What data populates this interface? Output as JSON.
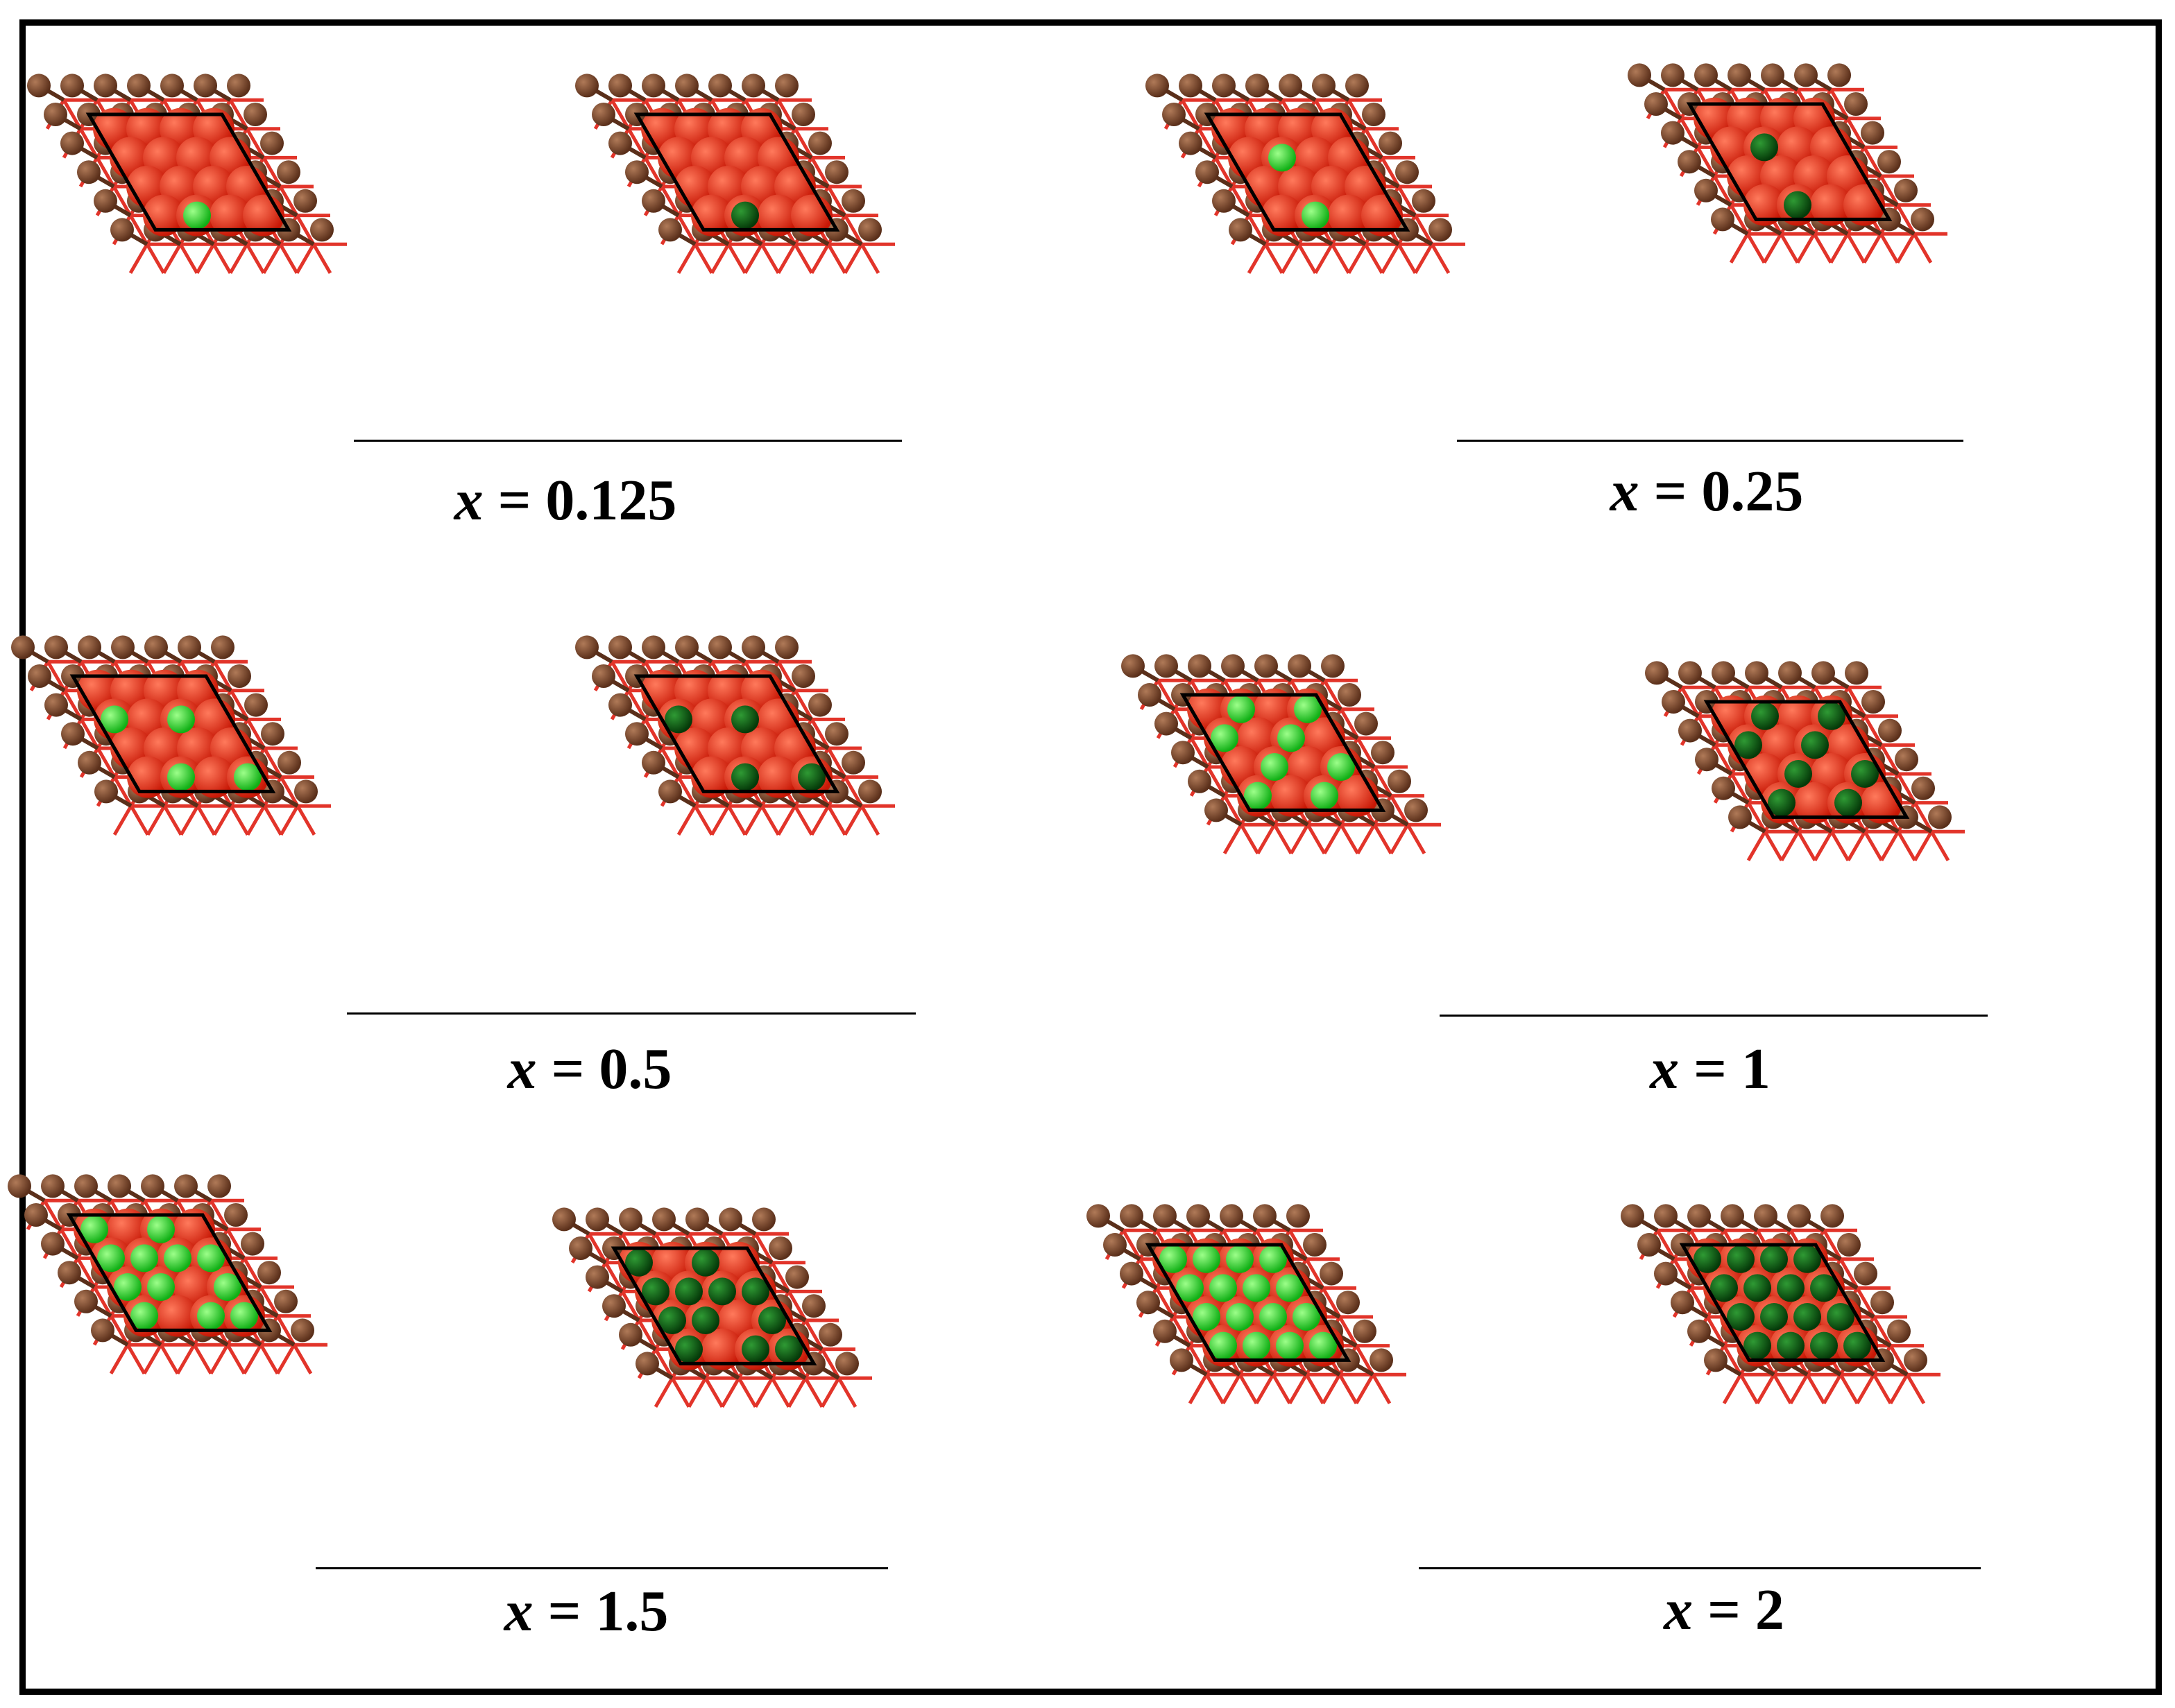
{
  "colors": {
    "frame": "#000000",
    "oxygen": "#ff2a14",
    "oxygen_dark": "#c81806",
    "metal": "#8a5536",
    "metal_dark": "#5a2f1a",
    "bond": "#e2342a",
    "cell": "#000000",
    "dopant_light": "#22ee22",
    "dopant_dark": "#0b5e12"
  },
  "panels": [
    {
      "label": {
        "var": "x",
        "value": "= 0.125"
      },
      "dopants": {
        "count": 1,
        "shades": [
          "light",
          "dark"
        ]
      }
    },
    {
      "label": {
        "var": "x",
        "value": "= 0.25"
      },
      "dopants": {
        "count": 2,
        "shades": [
          "light",
          "dark"
        ]
      }
    },
    {
      "label": {
        "var": "x",
        "value": "= 0.5"
      },
      "dopants": {
        "count": 4,
        "shades": [
          "light",
          "dark"
        ]
      }
    },
    {
      "label": {
        "var": "x",
        "value": "= 1"
      },
      "dopants": {
        "count": 8,
        "shades": [
          "light",
          "dark"
        ]
      }
    },
    {
      "label": {
        "var": "x",
        "value": "= 1.5"
      },
      "dopants": {
        "count": 12,
        "shades": [
          "light",
          "dark"
        ]
      }
    },
    {
      "label": {
        "var": "x",
        "value": "= 2"
      },
      "dopants": {
        "count": 16,
        "shades": [
          "light",
          "dark"
        ]
      }
    }
  ]
}
